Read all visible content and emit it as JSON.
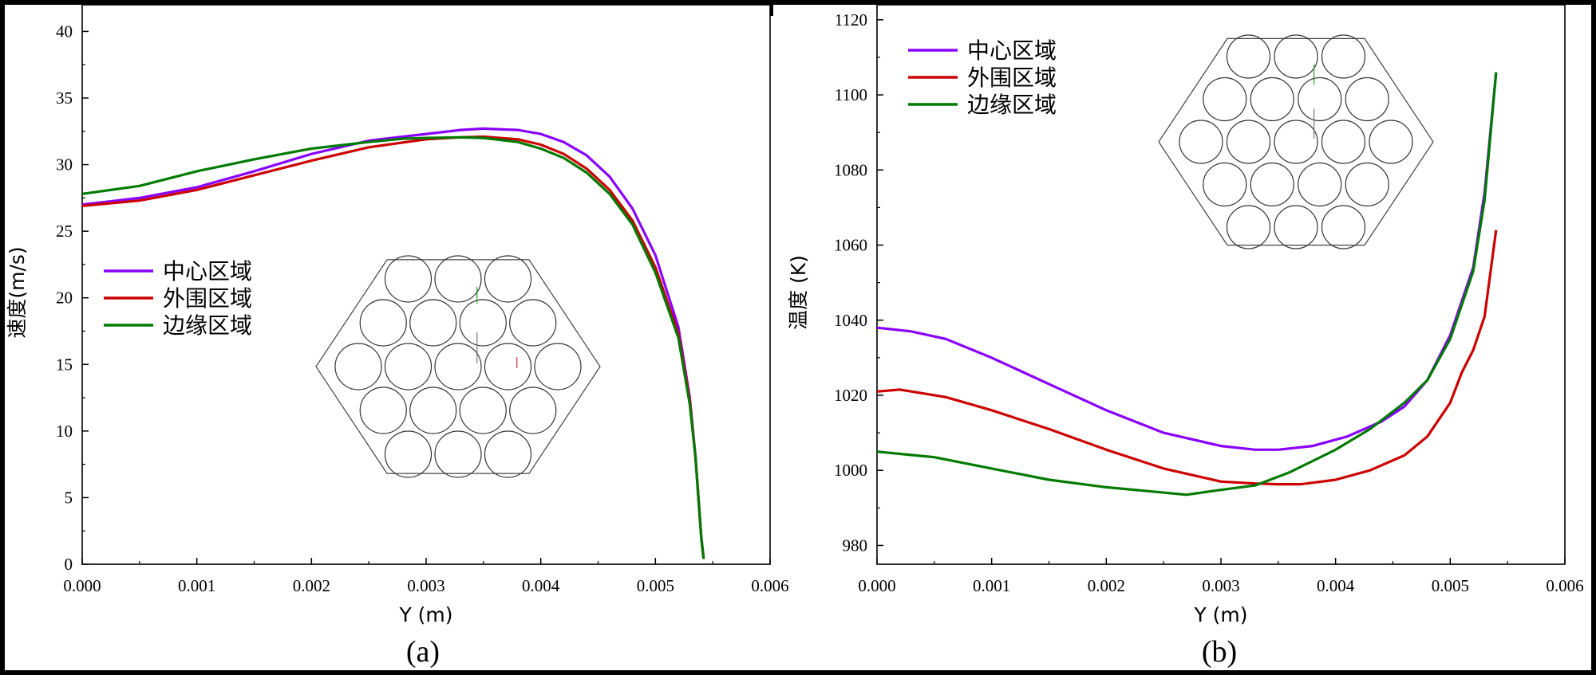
{
  "chart_data": [
    {
      "type": "line",
      "panel_label": "(a)",
      "xlabel": "Y (m)",
      "ylabel": "速度(m/s)",
      "xlim": [
        0,
        0.006
      ],
      "ylim": [
        0,
        42
      ],
      "xticks": [
        "0.000",
        "0.001",
        "0.002",
        "0.003",
        "0.004",
        "0.005",
        "0.006"
      ],
      "yticks": [
        "0",
        "5",
        "10",
        "15",
        "20",
        "25",
        "30",
        "35",
        "40"
      ],
      "legend_position": "left-middle",
      "colors": [
        "#8a00ff",
        "#cc0000",
        "#007a00"
      ],
      "series": [
        {
          "name": "中心区域",
          "x": [
            0,
            0.0005,
            0.001,
            0.0015,
            0.002,
            0.0025,
            0.003,
            0.0033,
            0.0035,
            0.0038,
            0.004,
            0.0042,
            0.0044,
            0.0046,
            0.0048,
            0.005,
            0.0052,
            0.0053,
            0.00535,
            0.0054,
            0.00542
          ],
          "y": [
            27,
            27.5,
            28.3,
            29.5,
            30.8,
            31.8,
            32.3,
            32.6,
            32.7,
            32.6,
            32.3,
            31.7,
            30.7,
            29.1,
            26.7,
            23.2,
            17.8,
            12.5,
            8,
            2,
            0.5
          ]
        },
        {
          "name": "外围区域",
          "x": [
            0,
            0.0005,
            0.001,
            0.0015,
            0.002,
            0.0025,
            0.003,
            0.0033,
            0.0035,
            0.0038,
            0.004,
            0.0042,
            0.0044,
            0.0046,
            0.0048,
            0.005,
            0.0052,
            0.0053,
            0.00535,
            0.0054,
            0.00542
          ],
          "y": [
            26.9,
            27.3,
            28.1,
            29.2,
            30.3,
            31.3,
            31.9,
            32.05,
            32.1,
            31.9,
            31.5,
            30.8,
            29.7,
            28.1,
            25.8,
            22.3,
            17.3,
            12.3,
            8,
            2,
            0.4
          ]
        },
        {
          "name": "边缘区域",
          "x": [
            0,
            0.0005,
            0.001,
            0.0015,
            0.002,
            0.0025,
            0.0028,
            0.003,
            0.0033,
            0.0035,
            0.0038,
            0.004,
            0.0042,
            0.0044,
            0.0046,
            0.0048,
            0.005,
            0.0052,
            0.0053,
            0.00535,
            0.0054,
            0.00542
          ],
          "y": [
            27.8,
            28.4,
            29.5,
            30.4,
            31.2,
            31.7,
            31.95,
            32,
            32.05,
            32,
            31.7,
            31.2,
            30.5,
            29.4,
            27.8,
            25.5,
            21.9,
            17,
            12,
            8,
            2,
            0.4
          ]
        }
      ]
    },
    {
      "type": "line",
      "panel_label": "(b)",
      "xlabel": "Y (m)",
      "ylabel": "温度 (K)",
      "xlim": [
        0,
        0.006
      ],
      "ylim": [
        975,
        1124
      ],
      "xticks": [
        "0.000",
        "0.001",
        "0.002",
        "0.003",
        "0.004",
        "0.005",
        "0.006"
      ],
      "yticks": [
        "980",
        "1000",
        "1020",
        "1040",
        "1060",
        "1080",
        "1100",
        "1120"
      ],
      "legend_position": "top-left",
      "colors": [
        "#8a00ff",
        "#cc0000",
        "#007a00"
      ],
      "series": [
        {
          "name": "中心区域",
          "x": [
            0,
            0.0003,
            0.0006,
            0.001,
            0.0015,
            0.002,
            0.0025,
            0.003,
            0.0033,
            0.0035,
            0.0038,
            0.0041,
            0.0044,
            0.0046,
            0.0048,
            0.005,
            0.0052,
            0.0053,
            0.0054
          ],
          "y": [
            1038,
            1037,
            1035,
            1030,
            1023,
            1016,
            1010,
            1006.5,
            1005.5,
            1005.5,
            1006.5,
            1009,
            1013,
            1017,
            1024,
            1036,
            1054,
            1074,
            1106
          ]
        },
        {
          "name": "外围区域",
          "x": [
            0,
            0.0002,
            0.0006,
            0.001,
            0.0015,
            0.002,
            0.0025,
            0.003,
            0.0033,
            0.0035,
            0.0037,
            0.004,
            0.0043,
            0.0046,
            0.0048,
            0.005,
            0.0051,
            0.0052,
            0.0053,
            0.0054
          ],
          "y": [
            1021,
            1021.5,
            1019.5,
            1016,
            1011,
            1005.5,
            1000.5,
            997,
            996.5,
            996.3,
            996.3,
            997.5,
            1000,
            1004,
            1009,
            1018,
            1026,
            1032,
            1041,
            1064
          ]
        },
        {
          "name": "边缘区域",
          "x": [
            0,
            0.0005,
            0.001,
            0.0015,
            0.002,
            0.0027,
            0.003,
            0.0033,
            0.0036,
            0.004,
            0.0043,
            0.0046,
            0.0048,
            0.005,
            0.0052,
            0.0053,
            0.0054
          ],
          "y": [
            1005,
            1003.5,
            1000.5,
            997.5,
            995.5,
            993.5,
            994.8,
            996,
            999.5,
            1005.5,
            1011,
            1018,
            1024,
            1035,
            1053,
            1072,
            1106
          ]
        }
      ]
    }
  ]
}
